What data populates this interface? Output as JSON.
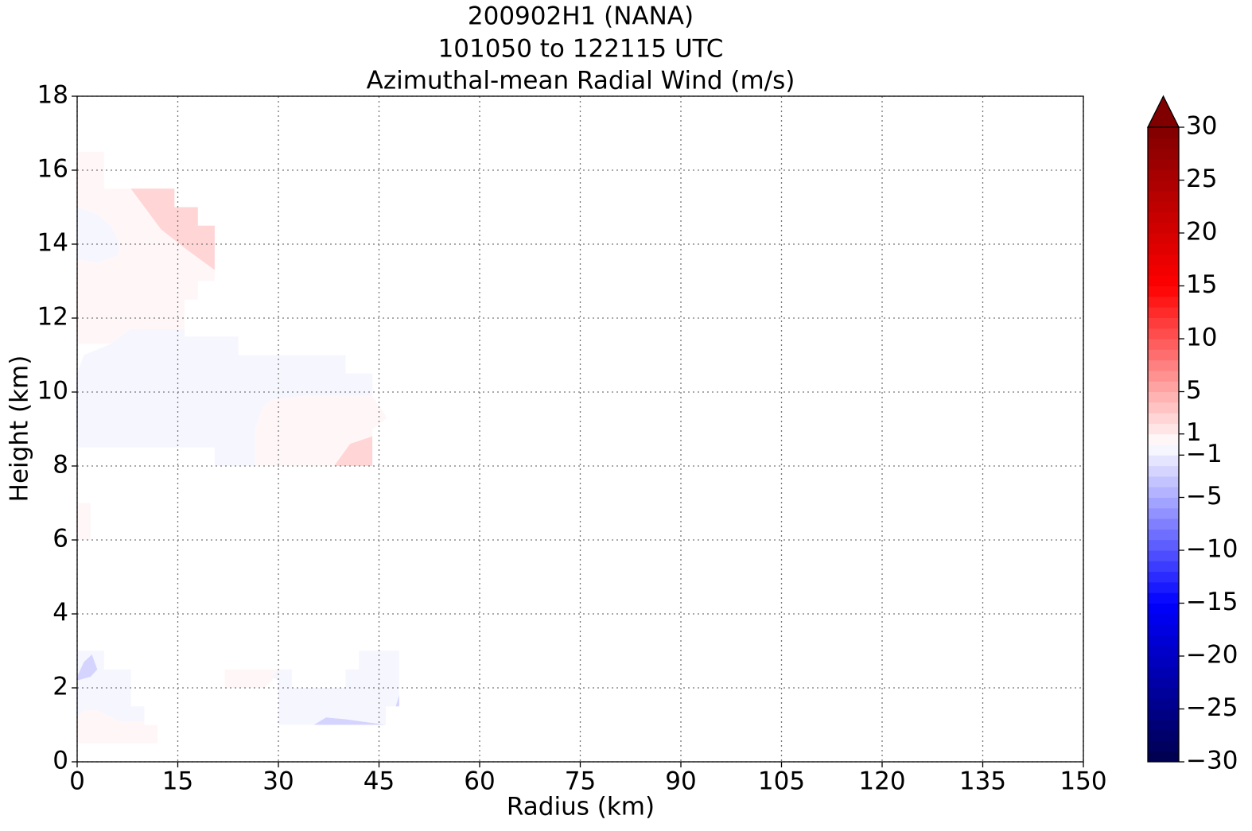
{
  "chart_data": {
    "type": "contourf",
    "title": [
      "200902H1 (NANA)",
      "101050 to 122115 UTC",
      "Azimuthal-mean Radial Wind (m/s)"
    ],
    "xlabel": "Radius (km)",
    "ylabel": "Height (km)",
    "xlim": [
      0,
      150
    ],
    "xticks": [
      0,
      15,
      30,
      45,
      60,
      75,
      90,
      105,
      120,
      135,
      150
    ],
    "ylim": [
      0,
      18
    ],
    "yticks": [
      0,
      2,
      4,
      6,
      8,
      10,
      12,
      14,
      16,
      18
    ],
    "grid": true,
    "regions": [
      {
        "value": 0.5,
        "polygon": [
          [
            0,
            16.5
          ],
          [
            4,
            16.5
          ],
          [
            4,
            15.5
          ],
          [
            14.5,
            15.5
          ],
          [
            14.5,
            15
          ],
          [
            18,
            15
          ],
          [
            18,
            14.5
          ],
          [
            20.5,
            14.5
          ],
          [
            20.5,
            13
          ],
          [
            18,
            13
          ],
          [
            18,
            12.5
          ],
          [
            16,
            12.5
          ],
          [
            16,
            11.3
          ],
          [
            0,
            11.3
          ]
        ]
      },
      {
        "value": 2.5,
        "polygon": [
          [
            8,
            15.5
          ],
          [
            14.5,
            15.5
          ],
          [
            14.5,
            15
          ],
          [
            18,
            15
          ],
          [
            18,
            14.5
          ],
          [
            20.5,
            14.5
          ],
          [
            20.5,
            13.3
          ],
          [
            16,
            13.9
          ],
          [
            12.5,
            14.4
          ]
        ]
      },
      {
        "value": -0.5,
        "polygon": [
          [
            0,
            15
          ],
          [
            3,
            14.8
          ],
          [
            5,
            14.5
          ],
          [
            6.3,
            14
          ],
          [
            6,
            13.7
          ],
          [
            3,
            13.5
          ],
          [
            0,
            13.6
          ]
        ]
      },
      {
        "value": -0.5,
        "polygon": [
          [
            0,
            10.5
          ],
          [
            1,
            11
          ],
          [
            5,
            11.3
          ],
          [
            8,
            11.7
          ],
          [
            16,
            11.7
          ],
          [
            16,
            11.5
          ],
          [
            24,
            11.5
          ],
          [
            24,
            11
          ],
          [
            40,
            11
          ],
          [
            40,
            10.5
          ],
          [
            44,
            10.5
          ],
          [
            44,
            8
          ],
          [
            20.5,
            8
          ],
          [
            20.5,
            8.5
          ],
          [
            0,
            8.5
          ]
        ]
      },
      {
        "value": 0.5,
        "polygon": [
          [
            26.5,
            8
          ],
          [
            26.5,
            9
          ],
          [
            27.6,
            9.6
          ],
          [
            29,
            9.8
          ],
          [
            33.6,
            9.9
          ],
          [
            44,
            9.9
          ],
          [
            46.2,
            9.3
          ],
          [
            44,
            9
          ],
          [
            44,
            8
          ]
        ]
      },
      {
        "value": 2.5,
        "polygon": [
          [
            38.3,
            8
          ],
          [
            40.7,
            8.6
          ],
          [
            44,
            8.8
          ],
          [
            44,
            8
          ]
        ]
      },
      {
        "value": 0.5,
        "polygon": [
          [
            0,
            6
          ],
          [
            2,
            6
          ],
          [
            2,
            7
          ],
          [
            0,
            7
          ]
        ]
      },
      {
        "value": -0.5,
        "polygon": [
          [
            0,
            3
          ],
          [
            4,
            3
          ],
          [
            4,
            2.5
          ],
          [
            8,
            2.5
          ],
          [
            8,
            1.5
          ],
          [
            10,
            1.5
          ],
          [
            10,
            1
          ],
          [
            0,
            1
          ]
        ]
      },
      {
        "value": 0.5,
        "polygon": [
          [
            0,
            0.5
          ],
          [
            12,
            0.5
          ],
          [
            12,
            1
          ],
          [
            10,
            1
          ],
          [
            10,
            1.1
          ],
          [
            6.3,
            1.1
          ],
          [
            3,
            1.4
          ],
          [
            1,
            1.4
          ],
          [
            0,
            1.2
          ]
        ]
      },
      {
        "value": -2.5,
        "polygon": [
          [
            0,
            2.3
          ],
          [
            1,
            2.7
          ],
          [
            2.2,
            2.9
          ],
          [
            3,
            2.5
          ],
          [
            2,
            2.3
          ],
          [
            0,
            2.2
          ]
        ]
      },
      {
        "value": 0.5,
        "polygon": [
          [
            22,
            2
          ],
          [
            22,
            2.5
          ],
          [
            30,
            2.5
          ],
          [
            29,
            2.2
          ],
          [
            28,
            2
          ]
        ]
      },
      {
        "value": -0.5,
        "polygon": [
          [
            30,
            1
          ],
          [
            30,
            2.2
          ],
          [
            29,
            2.3
          ],
          [
            30,
            2.5
          ],
          [
            32,
            2.5
          ],
          [
            32,
            2
          ],
          [
            40,
            2
          ],
          [
            40,
            2.5
          ],
          [
            42,
            2.5
          ],
          [
            42,
            3
          ],
          [
            48,
            3
          ],
          [
            48,
            1.5
          ],
          [
            46,
            1.5
          ],
          [
            46,
            1
          ]
        ]
      },
      {
        "value": -2.5,
        "polygon": [
          [
            35.3,
            1
          ],
          [
            37.1,
            1.2
          ],
          [
            40,
            1.15
          ],
          [
            46,
            1
          ]
        ]
      },
      {
        "value": -2.5,
        "polygon": [
          [
            47.5,
            1.5
          ],
          [
            48,
            1.5
          ],
          [
            48,
            1.8
          ]
        ]
      }
    ],
    "colorbar": {
      "colormap": "seismic",
      "extend": "max",
      "levels": [
        -30,
        -29,
        -28,
        -27,
        -26,
        -25,
        -24,
        -23,
        -22,
        -21,
        -20,
        -19,
        -18,
        -17,
        -16,
        -15,
        -14,
        -13,
        -12,
        -11,
        -10,
        -9,
        -8,
        -7,
        -6,
        -5,
        -4,
        -3,
        -2,
        -1,
        0,
        1,
        2,
        3,
        4,
        5,
        6,
        7,
        8,
        9,
        10,
        11,
        12,
        13,
        14,
        15,
        16,
        17,
        18,
        19,
        20,
        21,
        22,
        23,
        24,
        25,
        26,
        27,
        28,
        29,
        30
      ],
      "ticks": [
        {
          "value": -30,
          "label": "−30"
        },
        {
          "value": -25,
          "label": "−25"
        },
        {
          "value": -20,
          "label": "−20"
        },
        {
          "value": -15,
          "label": "−15"
        },
        {
          "value": -10,
          "label": "−10"
        },
        {
          "value": -5,
          "label": "−5"
        },
        {
          "value": -1,
          "label": "−1"
        },
        1,
        5,
        10,
        15,
        20,
        25,
        30
      ]
    }
  }
}
